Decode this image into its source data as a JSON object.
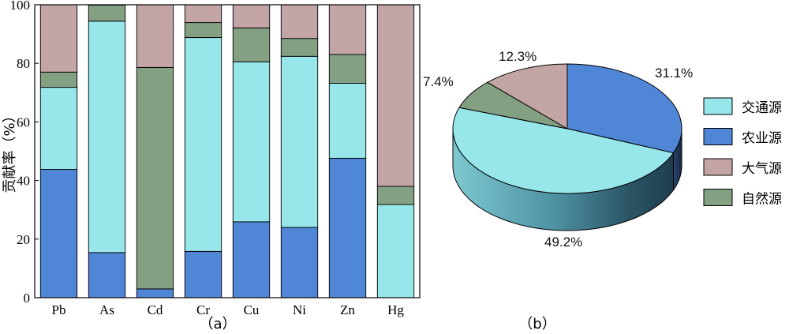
{
  "colors": {
    "交通源": "#96e6ea",
    "农业源": "#4f86d6",
    "大气源": "#c4a5a5",
    "自然源": "#83a083"
  },
  "chart_data": [
    {
      "type": "bar",
      "stacked": true,
      "caption": "（a）",
      "ylabel": "贡献率（%）",
      "ylim": [
        0,
        100
      ],
      "yticks": [
        0,
        20,
        40,
        60,
        80,
        100
      ],
      "categories": [
        "Pb",
        "As",
        "Cd",
        "Cr",
        "Cu",
        "Ni",
        "Zn",
        "Hg"
      ],
      "series": [
        {
          "name": "农业源",
          "values": [
            43.8,
            15.4,
            3.0,
            15.8,
            25.9,
            24.0,
            47.6,
            0.0
          ]
        },
        {
          "name": "交通源",
          "values": [
            28.0,
            79.0,
            0.0,
            73.0,
            54.6,
            58.4,
            25.6,
            31.8
          ]
        },
        {
          "name": "自然源",
          "values": [
            5.2,
            5.5,
            75.6,
            5.1,
            11.6,
            6.1,
            9.8,
            6.2
          ]
        },
        {
          "name": "大气源",
          "values": [
            23.0,
            0.1,
            21.4,
            6.1,
            7.9,
            11.5,
            17.0,
            62.0
          ]
        }
      ],
      "grid": false
    },
    {
      "type": "pie",
      "caption": "（b）",
      "style": "3d",
      "slices": [
        {
          "name": "农业源",
          "value": 31.1,
          "label": "31.1%"
        },
        {
          "name": "交通源",
          "value": 49.2,
          "label": "49.2%"
        },
        {
          "name": "自然源",
          "value": 7.4,
          "label": "7.4%"
        },
        {
          "name": "大气源",
          "value": 12.3,
          "label": "12.3%"
        }
      ],
      "legend": {
        "position": "right",
        "entries": [
          "交通源",
          "农业源",
          "大气源",
          "自然源"
        ]
      }
    }
  ]
}
